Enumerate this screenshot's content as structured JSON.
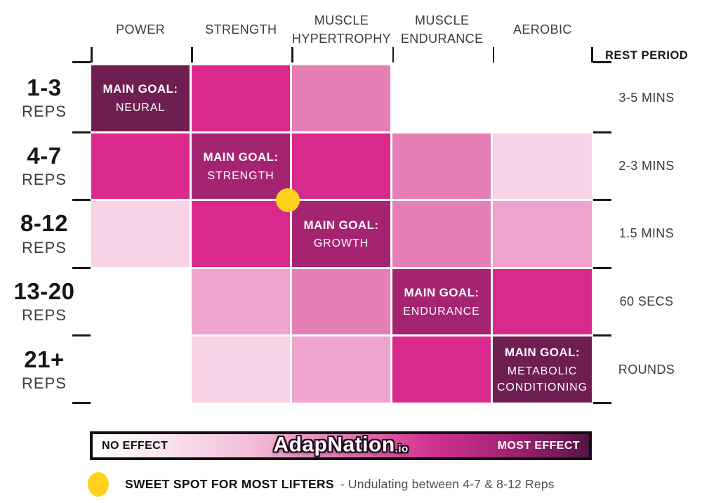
{
  "columns": [
    "POWER",
    "STRENGTH",
    "MUSCLE HYPERTROPHY",
    "MUSCLE ENDURANCE",
    "AEROBIC"
  ],
  "rest_period_header": "REST PERIOD",
  "main_goal_prefix": "MAIN GOAL:",
  "rows": [
    {
      "reps": "1-3",
      "reps_unit": "REPS",
      "rest": "3-5 MINS",
      "cells": [
        {
          "tier": "goal_dark",
          "goal": "NEURAL"
        },
        {
          "tier": "bright"
        },
        {
          "tier": "medium"
        },
        {
          "tier": "none"
        },
        {
          "tier": "none"
        }
      ]
    },
    {
      "reps": "4-7",
      "reps_unit": "REPS",
      "rest": "2-3 MINS",
      "cells": [
        {
          "tier": "bright"
        },
        {
          "tier": "goal",
          "goal": "STRENGTH"
        },
        {
          "tier": "bright"
        },
        {
          "tier": "medium"
        },
        {
          "tier": "xlight"
        }
      ]
    },
    {
      "reps": "8-12",
      "reps_unit": "REPS",
      "rest": "1.5 MINS",
      "cells": [
        {
          "tier": "xlight"
        },
        {
          "tier": "bright"
        },
        {
          "tier": "goal",
          "goal": "GROWTH"
        },
        {
          "tier": "medium"
        },
        {
          "tier": "light"
        }
      ]
    },
    {
      "reps": "13-20",
      "reps_unit": "REPS",
      "rest": "60 SECS",
      "cells": [
        {
          "tier": "none"
        },
        {
          "tier": "light"
        },
        {
          "tier": "medium"
        },
        {
          "tier": "goal",
          "goal": "ENDURANCE"
        },
        {
          "tier": "bright"
        }
      ]
    },
    {
      "reps": "21+",
      "reps_unit": "REPS",
      "rest": "ROUNDS",
      "cells": [
        {
          "tier": "none"
        },
        {
          "tier": "xlight"
        },
        {
          "tier": "light"
        },
        {
          "tier": "bright"
        },
        {
          "tier": "goal_dark",
          "goal": "METABOLIC CONDITIONING"
        }
      ]
    }
  ],
  "scale_bar": {
    "left_label": "NO EFFECT",
    "right_label": "MOST EFFECT",
    "brand": "AdapNation",
    "brand_suffix": ".io"
  },
  "legend": {
    "label": "SWEET SPOT FOR MOST LIFTERS",
    "description": "- Undulating between 4-7 & 8-12 Reps"
  },
  "colors": {
    "tiers": {
      "none": "transparent",
      "xlight": "#F8D2E6",
      "light": "#F0A3CC",
      "medium": "#E77FB7",
      "bright": "#D9298C",
      "goal": "#A52472",
      "goal_dark": "#6F1F4F"
    },
    "sweet_spot": "#FFD21E",
    "tick": "#1A1A1A",
    "text_dark": "#3C3C3C"
  },
  "chart_data": {
    "type": "heatmap",
    "x_categories": [
      "POWER",
      "STRENGTH",
      "MUSCLE HYPERTROPHY",
      "MUSCLE ENDURANCE",
      "AEROBIC"
    ],
    "y_categories": [
      "1-3 REPS",
      "4-7 REPS",
      "8-12 REPS",
      "13-20 REPS",
      "21+ REPS"
    ],
    "rest_period_per_row": [
      "3-5 MINS",
      "2-3 MINS",
      "1.5 MINS",
      "60 SECS",
      "ROUNDS"
    ],
    "effect_matrix": [
      [
        5,
        4,
        3,
        0,
        0
      ],
      [
        4,
        5,
        4,
        3,
        1
      ],
      [
        1,
        4,
        5,
        3,
        2
      ],
      [
        0,
        2,
        3,
        5,
        4
      ],
      [
        0,
        1,
        2,
        4,
        5
      ]
    ],
    "effect_scale_note": "0 = no cell shown (no effect), 1-4 = increasing effect intensity, 5 = main goal cell (most effect)",
    "main_goals": [
      {
        "reps": "1-3",
        "column": "POWER",
        "goal": "NEURAL"
      },
      {
        "reps": "4-7",
        "column": "STRENGTH",
        "goal": "STRENGTH"
      },
      {
        "reps": "8-12",
        "column": "MUSCLE HYPERTROPHY",
        "goal": "GROWTH"
      },
      {
        "reps": "13-20",
        "column": "MUSCLE ENDURANCE",
        "goal": "ENDURANCE"
      },
      {
        "reps": "21+",
        "column": "AEROBIC",
        "goal": "METABOLIC CONDITIONING"
      }
    ],
    "annotations": [
      {
        "type": "sweet-spot-dot",
        "between": [
          "4-7 REPS / STRENGTH",
          "8-12 REPS / MUSCLE HYPERTROPHY"
        ],
        "label": "SWEET SPOT FOR MOST LIFTERS - Undulating between 4-7 & 8-12 Reps"
      }
    ],
    "legend": {
      "min_label": "NO EFFECT",
      "max_label": "MOST EFFECT",
      "position": "bottom"
    }
  }
}
